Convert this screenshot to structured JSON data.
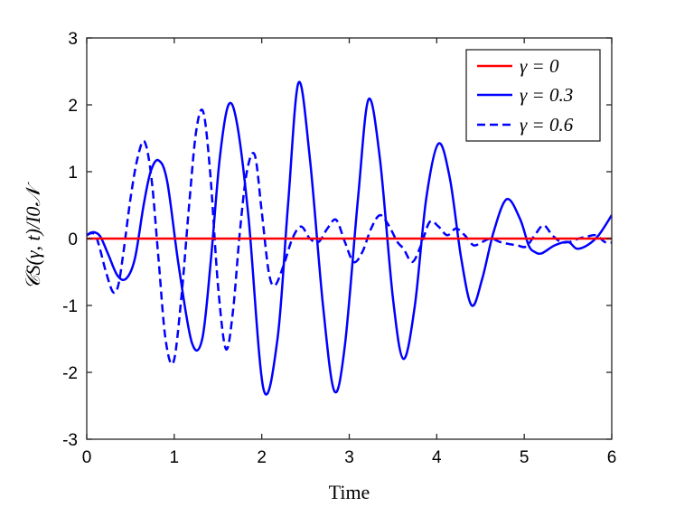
{
  "chart_data": {
    "type": "line",
    "xlabel": "Time",
    "ylabel": "𝒞S(γ, t)/I0𝒩",
    "xlim": [
      0,
      6
    ],
    "ylim": [
      -3,
      3
    ],
    "xticks": [
      0,
      1,
      2,
      3,
      4,
      5,
      6
    ],
    "yticks": [
      -3,
      -2,
      -1,
      0,
      1,
      2,
      3
    ],
    "grid": false,
    "legend_position": "top-right",
    "series": [
      {
        "name": "γ = 0",
        "color": "#ff0000",
        "style": "solid",
        "x": [
          0,
          6
        ],
        "y": [
          0,
          0
        ]
      },
      {
        "name": "γ = 0.3",
        "color": "#0000ff",
        "style": "solid",
        "x": [
          0,
          0.05,
          0.1,
          0.16,
          0.25,
          0.35,
          0.45,
          0.55,
          0.65,
          0.73,
          0.82,
          0.92,
          1.05,
          1.2,
          1.32,
          1.42,
          1.52,
          1.62,
          1.72,
          1.85,
          2.02,
          2.18,
          2.3,
          2.42,
          2.55,
          2.7,
          2.83,
          2.95,
          3.1,
          3.22,
          3.35,
          3.5,
          3.62,
          3.75,
          3.88,
          4.02,
          4.15,
          4.28,
          4.4,
          4.52,
          4.65,
          4.8,
          4.95,
          5.05,
          5.12,
          5.2,
          5.35,
          5.5,
          5.6,
          5.72,
          5.85,
          6.0
        ],
        "y": [
          0.05,
          0.09,
          0.09,
          0.02,
          -0.25,
          -0.55,
          -0.6,
          -0.3,
          0.5,
          1.0,
          1.17,
          0.85,
          -0.4,
          -1.55,
          -1.5,
          -0.3,
          1.2,
          2.0,
          1.7,
          0.3,
          -2.25,
          -1.5,
          0.5,
          2.33,
          1.2,
          -1.0,
          -2.28,
          -1.6,
          0.6,
          2.08,
          1.2,
          -0.9,
          -1.8,
          -1.0,
          0.6,
          1.42,
          0.9,
          -0.3,
          -1.0,
          -0.6,
          0.1,
          0.59,
          0.3,
          -0.1,
          -0.2,
          -0.22,
          -0.1,
          -0.05,
          -0.15,
          -0.1,
          0.05,
          0.35
        ]
      },
      {
        "name": "γ = 0.6",
        "color": "#0000ff",
        "style": "dashed",
        "x": [
          0,
          0.05,
          0.1,
          0.15,
          0.22,
          0.3,
          0.36,
          0.42,
          0.5,
          0.58,
          0.66,
          0.74,
          0.82,
          0.9,
          0.99,
          1.08,
          1.17,
          1.25,
          1.33,
          1.41,
          1.5,
          1.59,
          1.67,
          1.75,
          1.83,
          1.92,
          2.0,
          2.08,
          2.15,
          2.25,
          2.35,
          2.45,
          2.55,
          2.65,
          2.75,
          2.85,
          2.95,
          3.05,
          3.15,
          3.25,
          3.35,
          3.45,
          3.55,
          3.62,
          3.72,
          3.82,
          3.92,
          4.02,
          4.12,
          4.22,
          4.32,
          4.42,
          4.52,
          4.62,
          4.72,
          4.82,
          4.92,
          5.02,
          5.12,
          5.22,
          5.32,
          5.42,
          5.52,
          5.62,
          5.72,
          5.82,
          5.92,
          6.0
        ],
        "y": [
          0.05,
          0.08,
          0.05,
          -0.15,
          -0.5,
          -0.8,
          -0.7,
          -0.2,
          0.6,
          1.2,
          1.45,
          0.9,
          -0.3,
          -1.5,
          -1.85,
          -0.9,
          0.5,
          1.6,
          1.9,
          1.0,
          -0.7,
          -1.65,
          -1.1,
          0.1,
          1.0,
          1.25,
          0.4,
          -0.5,
          -0.7,
          -0.4,
          0.0,
          0.18,
          0.0,
          -0.05,
          0.15,
          0.28,
          -0.05,
          -0.35,
          -0.2,
          0.15,
          0.35,
          0.2,
          -0.05,
          -0.15,
          -0.35,
          -0.1,
          0.25,
          0.18,
          0.05,
          0.15,
          0.05,
          -0.1,
          -0.05,
          0.0,
          -0.05,
          -0.08,
          -0.1,
          -0.12,
          0.05,
          0.2,
          0.05,
          -0.05,
          -0.05,
          0.0,
          0.03,
          0.05,
          -0.05,
          -0.06
        ]
      }
    ]
  }
}
